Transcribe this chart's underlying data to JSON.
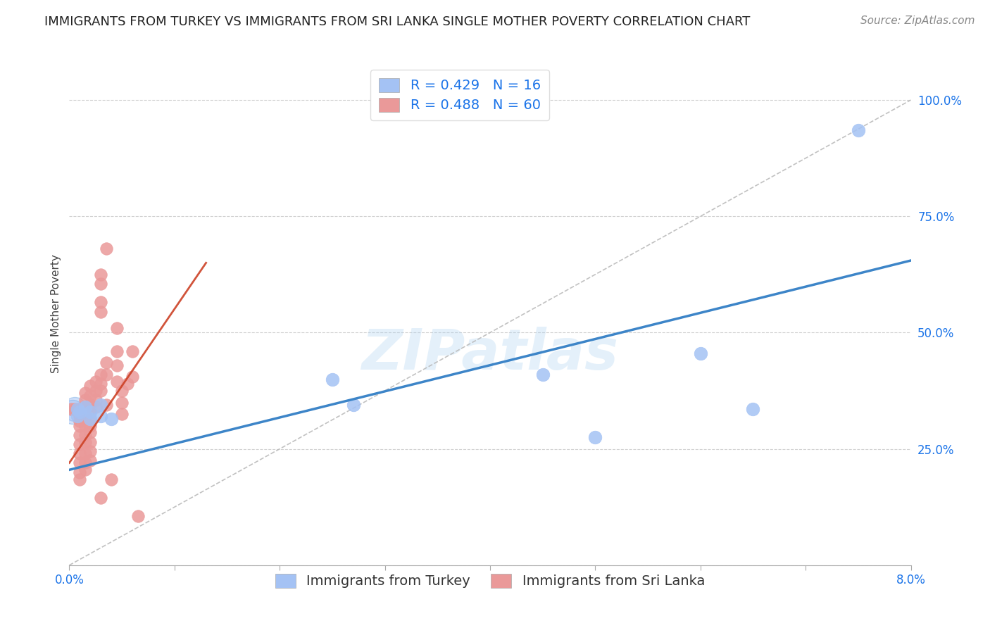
{
  "title": "IMMIGRANTS FROM TURKEY VS IMMIGRANTS FROM SRI LANKA SINGLE MOTHER POVERTY CORRELATION CHART",
  "source_text": "Source: ZipAtlas.com",
  "ylabel": "Single Mother Poverty",
  "xlim": [
    0.0,
    0.08
  ],
  "ylim": [
    0.0,
    1.08
  ],
  "blue_color": "#a4c2f4",
  "pink_color": "#ea9999",
  "blue_line_color": "#3d85c8",
  "pink_line_color": "#cc4125",
  "blue_R": 0.429,
  "blue_N": 16,
  "pink_R": 0.488,
  "pink_N": 60,
  "legend_label_blue": "Immigrants from Turkey",
  "legend_label_pink": "Immigrants from Sri Lanka",
  "watermark": "ZIPatlas",
  "blue_scatter": [
    [
      0.0008,
      0.335
    ],
    [
      0.0008,
      0.32
    ],
    [
      0.001,
      0.33
    ],
    [
      0.0015,
      0.34
    ],
    [
      0.002,
      0.315
    ],
    [
      0.002,
      0.33
    ],
    [
      0.003,
      0.32
    ],
    [
      0.003,
      0.345
    ],
    [
      0.004,
      0.315
    ],
    [
      0.025,
      0.4
    ],
    [
      0.027,
      0.345
    ],
    [
      0.045,
      0.41
    ],
    [
      0.05,
      0.275
    ],
    [
      0.06,
      0.455
    ],
    [
      0.065,
      0.335
    ],
    [
      0.075,
      0.935
    ]
  ],
  "pink_scatter": [
    [
      0.0002,
      0.335
    ],
    [
      0.0005,
      0.335
    ],
    [
      0.001,
      0.335
    ],
    [
      0.001,
      0.32
    ],
    [
      0.001,
      0.31
    ],
    [
      0.001,
      0.3
    ],
    [
      0.001,
      0.28
    ],
    [
      0.001,
      0.26
    ],
    [
      0.001,
      0.24
    ],
    [
      0.001,
      0.22
    ],
    [
      0.001,
      0.2
    ],
    [
      0.001,
      0.185
    ],
    [
      0.0015,
      0.37
    ],
    [
      0.0015,
      0.355
    ],
    [
      0.0015,
      0.34
    ],
    [
      0.0015,
      0.32
    ],
    [
      0.0015,
      0.3
    ],
    [
      0.0015,
      0.28
    ],
    [
      0.0015,
      0.265
    ],
    [
      0.0015,
      0.24
    ],
    [
      0.0015,
      0.22
    ],
    [
      0.0015,
      0.205
    ],
    [
      0.002,
      0.385
    ],
    [
      0.002,
      0.365
    ],
    [
      0.002,
      0.345
    ],
    [
      0.002,
      0.33
    ],
    [
      0.002,
      0.315
    ],
    [
      0.002,
      0.3
    ],
    [
      0.002,
      0.285
    ],
    [
      0.002,
      0.265
    ],
    [
      0.002,
      0.245
    ],
    [
      0.002,
      0.225
    ],
    [
      0.0025,
      0.395
    ],
    [
      0.0025,
      0.375
    ],
    [
      0.0025,
      0.355
    ],
    [
      0.0025,
      0.34
    ],
    [
      0.003,
      0.625
    ],
    [
      0.003,
      0.605
    ],
    [
      0.003,
      0.565
    ],
    [
      0.003,
      0.545
    ],
    [
      0.003,
      0.41
    ],
    [
      0.003,
      0.39
    ],
    [
      0.003,
      0.375
    ],
    [
      0.003,
      0.145
    ],
    [
      0.0035,
      0.68
    ],
    [
      0.0035,
      0.435
    ],
    [
      0.0035,
      0.41
    ],
    [
      0.0035,
      0.345
    ],
    [
      0.004,
      0.185
    ],
    [
      0.0045,
      0.51
    ],
    [
      0.0045,
      0.46
    ],
    [
      0.0045,
      0.43
    ],
    [
      0.0045,
      0.395
    ],
    [
      0.005,
      0.375
    ],
    [
      0.005,
      0.35
    ],
    [
      0.005,
      0.325
    ],
    [
      0.0055,
      0.39
    ],
    [
      0.006,
      0.46
    ],
    [
      0.006,
      0.405
    ],
    [
      0.0065,
      0.105
    ]
  ],
  "title_fontsize": 13,
  "axis_label_fontsize": 11,
  "tick_fontsize": 12,
  "legend_fontsize": 14,
  "source_fontsize": 11
}
